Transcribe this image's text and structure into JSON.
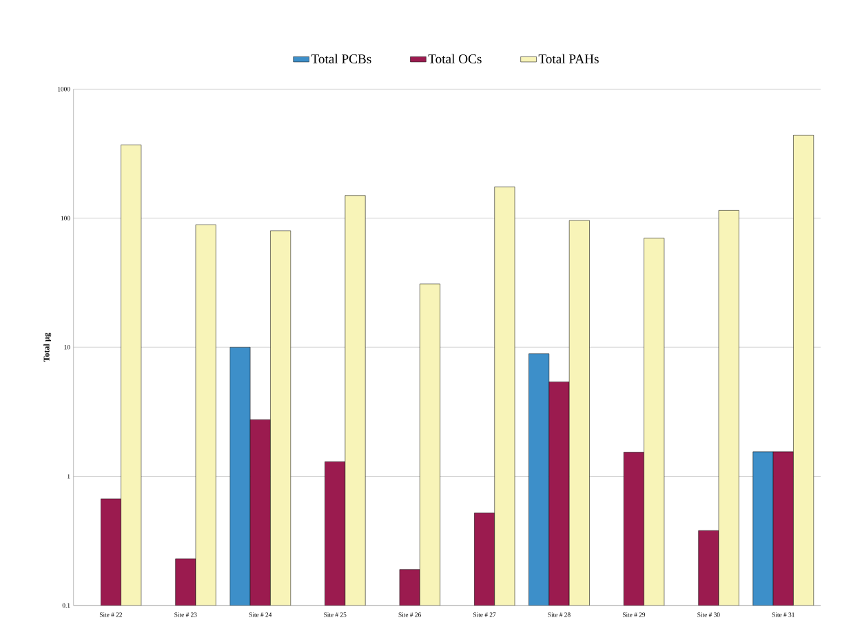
{
  "chart_data": {
    "type": "bar",
    "ylabel": "Total µg",
    "categories": [
      "Site # 22",
      "Site # 23",
      "Site # 24",
      "Site # 25",
      "Site # 26",
      "Site # 27",
      "Site # 28",
      "Site # 29",
      "Site # 30",
      "Site # 31"
    ],
    "series": [
      {
        "name": "Total PCBs",
        "color": "#3d8fc9",
        "values": [
          null,
          null,
          10,
          null,
          null,
          null,
          8.9,
          null,
          null,
          1.55
        ]
      },
      {
        "name": "Total OCs",
        "color": "#9b1b4f",
        "values": [
          0.67,
          0.23,
          2.75,
          1.3,
          0.19,
          0.52,
          5.4,
          1.54,
          0.38,
          1.55
        ]
      },
      {
        "name": "Total PAHs",
        "color": "#f8f4b8",
        "values": [
          370,
          89,
          80,
          150,
          31,
          175,
          96,
          70,
          115,
          440
        ]
      }
    ],
    "log": "y",
    "ylim": [
      0.1,
      1000
    ],
    "yticks": [
      0.1,
      1,
      10,
      100,
      1000
    ],
    "grid": "y",
    "legend": "top"
  }
}
